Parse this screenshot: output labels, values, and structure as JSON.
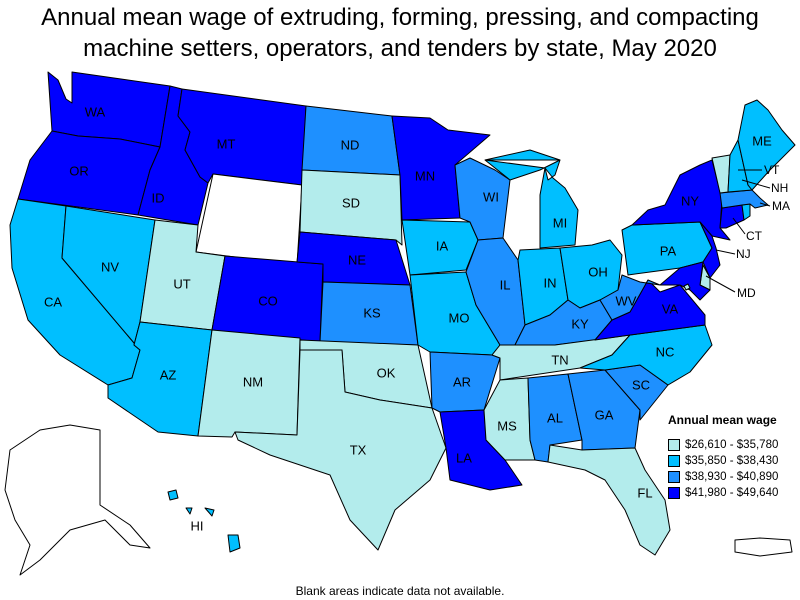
{
  "title": "Annual mean wage of extruding, forming, pressing, and compacting machine setters, operators, and tenders by state, May 2020",
  "footnote": "Blank areas indicate data not available.",
  "legend": {
    "title": "Annual mean wage",
    "items": [
      {
        "label": "$26,610 - $35,780",
        "color": "#b3ecec"
      },
      {
        "label": "$35,850 - $38,430",
        "color": "#00bfff"
      },
      {
        "label": "$38,930 - $40,890",
        "color": "#1e90ff"
      },
      {
        "label": "$41,980 - $49,640",
        "color": "#0000ff"
      }
    ]
  },
  "no_data_color": "#ffffff",
  "states": {
    "WA": {
      "tier": 3
    },
    "OR": {
      "tier": 3
    },
    "ID": {
      "tier": 3
    },
    "MT": {
      "tier": 3
    },
    "WY": {
      "tier": null
    },
    "CA": {
      "tier": 1
    },
    "NV": {
      "tier": 1
    },
    "UT": {
      "tier": 0
    },
    "AZ": {
      "tier": 1
    },
    "CO": {
      "tier": 3
    },
    "NM": {
      "tier": 0
    },
    "ND": {
      "tier": 2
    },
    "SD": {
      "tier": 0
    },
    "NE": {
      "tier": 3
    },
    "KS": {
      "tier": 2
    },
    "OK": {
      "tier": 0
    },
    "TX": {
      "tier": 0
    },
    "MN": {
      "tier": 3
    },
    "IA": {
      "tier": 1
    },
    "MO": {
      "tier": 1
    },
    "AR": {
      "tier": 2
    },
    "LA": {
      "tier": 3
    },
    "WI": {
      "tier": 2
    },
    "IL": {
      "tier": 2
    },
    "MI": {
      "tier": 1
    },
    "IN": {
      "tier": 1
    },
    "OH": {
      "tier": 1
    },
    "KY": {
      "tier": 2
    },
    "TN": {
      "tier": 0
    },
    "MS": {
      "tier": 0
    },
    "AL": {
      "tier": 2
    },
    "GA": {
      "tier": 2
    },
    "FL": {
      "tier": 0
    },
    "SC": {
      "tier": 2
    },
    "NC": {
      "tier": 1
    },
    "VA": {
      "tier": 3
    },
    "WV": {
      "tier": 2
    },
    "PA": {
      "tier": 1
    },
    "NY": {
      "tier": 3
    },
    "NJ": {
      "tier": 3
    },
    "DE": {
      "tier": 0
    },
    "MD": {
      "tier": 3
    },
    "DC": {
      "tier": 0
    },
    "CT": {
      "tier": 3
    },
    "RI": {
      "tier": 1
    },
    "MA": {
      "tier": 2
    },
    "VT": {
      "tier": 0
    },
    "NH": {
      "tier": 1
    },
    "ME": {
      "tier": 1
    },
    "AK": {
      "tier": null
    },
    "HI": {
      "tier": 1
    },
    "PR": {
      "tier": null
    }
  }
}
